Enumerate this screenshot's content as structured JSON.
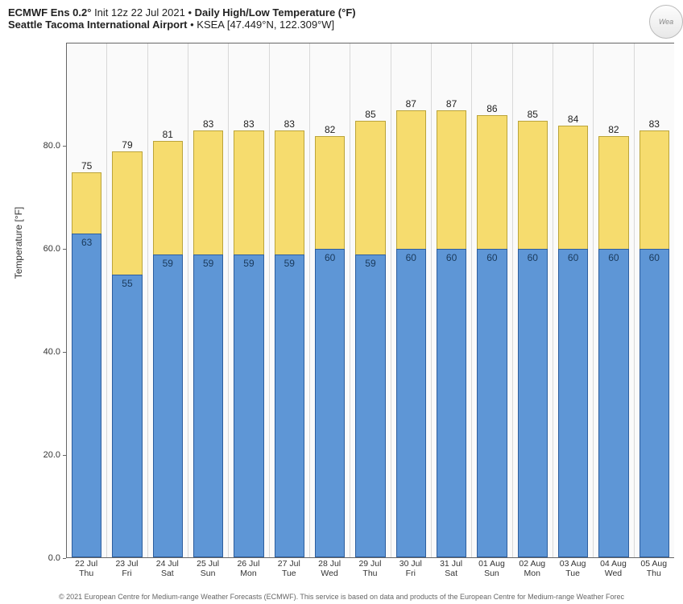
{
  "header": {
    "model": "ECMWF Ens 0.2°",
    "init": "Init 12z 22 Jul 2021",
    "title": "Daily High/Low Temperature (°F)",
    "location": "Seattle Tacoma International Airport",
    "station": "KSEA [47.449°N, 122.309°W]"
  },
  "chart": {
    "type": "bar",
    "ylabel": "Temperature [°F]",
    "ylim_min": 0,
    "ylim_max": 100,
    "ytick_step": 20,
    "plot_bg": "#fafafa",
    "grid_color": "#d8d8d8",
    "high_fill": "#f6dc6e",
    "high_border": "#bba43a",
    "low_fill": "#5e96d6",
    "low_border": "#2d5e9e",
    "label_fontsize": 12,
    "yticks": [
      {
        "v": 0,
        "label": "0.0"
      },
      {
        "v": 20,
        "label": "20.0"
      },
      {
        "v": 40,
        "label": "40.0"
      },
      {
        "v": 60,
        "label": "60.0"
      },
      {
        "v": 80,
        "label": "80.0"
      }
    ],
    "days": [
      {
        "date": "22 Jul",
        "dow": "Thu",
        "high": 75,
        "low": 63
      },
      {
        "date": "23 Jul",
        "dow": "Fri",
        "high": 79,
        "low": 55
      },
      {
        "date": "24 Jul",
        "dow": "Sat",
        "high": 81,
        "low": 59
      },
      {
        "date": "25 Jul",
        "dow": "Sun",
        "high": 83,
        "low": 59
      },
      {
        "date": "26 Jul",
        "dow": "Mon",
        "high": 83,
        "low": 59
      },
      {
        "date": "27 Jul",
        "dow": "Tue",
        "high": 83,
        "low": 59
      },
      {
        "date": "28 Jul",
        "dow": "Wed",
        "high": 82,
        "low": 60
      },
      {
        "date": "29 Jul",
        "dow": "Thu",
        "high": 85,
        "low": 59
      },
      {
        "date": "30 Jul",
        "dow": "Fri",
        "high": 87,
        "low": 60
      },
      {
        "date": "31 Jul",
        "dow": "Sat",
        "high": 87,
        "low": 60
      },
      {
        "date": "01 Aug",
        "dow": "Sun",
        "high": 86,
        "low": 60
      },
      {
        "date": "02 Aug",
        "dow": "Mon",
        "high": 85,
        "low": 60
      },
      {
        "date": "03 Aug",
        "dow": "Tue",
        "high": 84,
        "low": 60
      },
      {
        "date": "04 Aug",
        "dow": "Wed",
        "high": 82,
        "low": 60
      },
      {
        "date": "05 Aug",
        "dow": "Thu",
        "high": 83,
        "low": 60
      }
    ]
  },
  "watermark": "Wea",
  "footer": "© 2021 European Centre for Medium-range Weather Forecasts (ECMWF). This service is based on data and products of the European Centre for Medium-range Weather Forec"
}
